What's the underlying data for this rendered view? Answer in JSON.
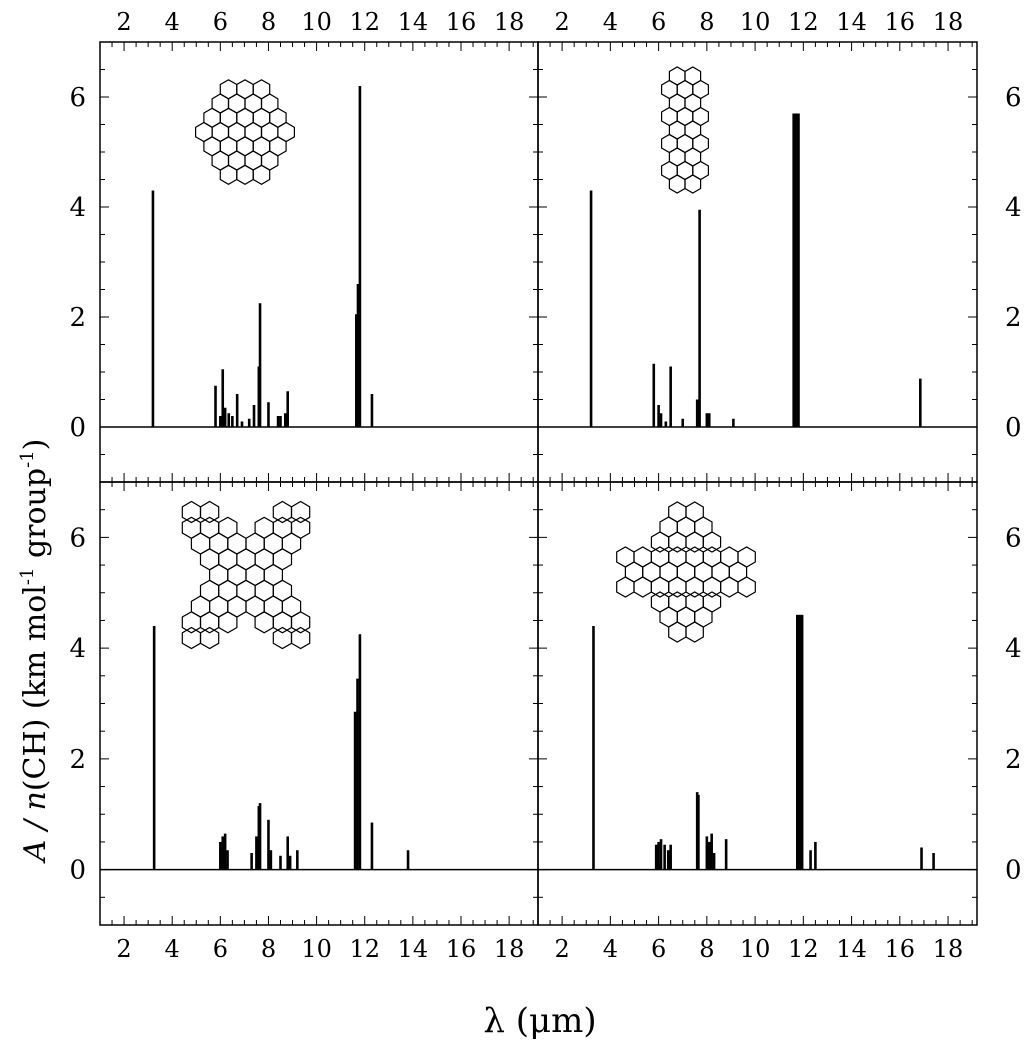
{
  "figure": {
    "xlabel": "λ (μm)",
    "ylabel_prefix": "A / ",
    "ylabel_n": "n",
    "ylabel_main": "(CH) (km mol",
    "ylabel_sup1": "-1",
    "ylabel_mid": " group",
    "ylabel_sup2": "-1",
    "ylabel_end": ")"
  },
  "chart_data": [
    {
      "type": "bar",
      "panel": "top-left",
      "xlim": [
        1,
        19.2
      ],
      "ylim": [
        -1,
        7
      ],
      "xticks": [
        2,
        4,
        6,
        8,
        10,
        12,
        14,
        16,
        18
      ],
      "yticks": [
        0,
        2,
        4,
        6
      ],
      "molecule_icon": "rhombic-pah-structure-icon",
      "x": [
        3.2,
        5.8,
        6.0,
        6.1,
        6.2,
        6.35,
        6.5,
        6.7,
        6.9,
        7.2,
        7.4,
        7.6,
        7.65,
        8.0,
        8.4,
        8.5,
        8.7,
        8.8,
        11.65,
        11.72,
        11.8,
        12.3
      ],
      "values": [
        4.3,
        0.75,
        0.2,
        1.05,
        0.35,
        0.25,
        0.2,
        0.6,
        0.1,
        0.15,
        0.4,
        1.1,
        2.25,
        0.45,
        0.2,
        0.2,
        0.25,
        0.65,
        2.05,
        2.6,
        6.2,
        0.6
      ]
    },
    {
      "type": "bar",
      "panel": "top-right",
      "xlim": [
        1,
        19.2
      ],
      "ylim": [
        -1,
        7
      ],
      "xticks": [
        2,
        4,
        6,
        8,
        10,
        12,
        14,
        16,
        18
      ],
      "yticks": [
        0,
        2,
        4,
        6
      ],
      "molecule_icon": "elongated-pah-structure-icon",
      "x": [
        3.2,
        5.8,
        6.0,
        6.1,
        6.3,
        6.5,
        7.0,
        7.6,
        7.7,
        8.0,
        8.1,
        9.1,
        11.6,
        11.65,
        11.7,
        11.75,
        11.8,
        16.85
      ],
      "values": [
        4.3,
        1.15,
        0.4,
        0.25,
        0.1,
        1.1,
        0.15,
        0.5,
        3.95,
        0.25,
        0.25,
        0.15,
        5.7,
        5.7,
        5.7,
        5.7,
        5.7,
        0.88
      ]
    },
    {
      "type": "bar",
      "panel": "bottom-left",
      "xlim": [
        1,
        19.2
      ],
      "ylim": [
        -1,
        7
      ],
      "xticks": [
        2,
        4,
        6,
        8,
        10,
        12,
        14,
        16,
        18
      ],
      "yticks": [
        0,
        2,
        4,
        6
      ],
      "molecule_icon": "x-shaped-pah-structure-icon",
      "x": [
        3.25,
        6.0,
        6.1,
        6.2,
        6.3,
        7.3,
        7.5,
        7.6,
        7.65,
        8.0,
        8.1,
        8.5,
        8.8,
        8.9,
        9.2,
        11.6,
        11.7,
        11.8,
        12.3,
        13.8
      ],
      "values": [
        4.4,
        0.5,
        0.6,
        0.65,
        0.35,
        0.3,
        0.6,
        1.15,
        1.2,
        0.9,
        0.35,
        0.25,
        0.6,
        0.25,
        0.35,
        2.85,
        3.45,
        4.25,
        0.85,
        0.35
      ]
    },
    {
      "type": "bar",
      "panel": "bottom-right",
      "xlim": [
        1,
        19.2
      ],
      "ylim": [
        -1,
        7
      ],
      "xticks": [
        2,
        4,
        6,
        8,
        10,
        12,
        14,
        16,
        18
      ],
      "yticks": [
        0,
        2,
        4,
        6
      ],
      "molecule_icon": "cross-shaped-pah-structure-icon",
      "x": [
        3.3,
        5.9,
        6.0,
        6.1,
        6.25,
        6.4,
        6.5,
        7.6,
        7.65,
        8.0,
        8.1,
        8.2,
        8.3,
        8.8,
        11.75,
        11.8,
        11.85,
        11.9,
        11.95,
        12.3,
        12.5,
        16.9,
        17.4
      ],
      "values": [
        4.4,
        0.45,
        0.5,
        0.55,
        0.45,
        0.35,
        0.45,
        1.4,
        1.35,
        0.6,
        0.5,
        0.65,
        0.3,
        0.55,
        4.6,
        4.6,
        4.6,
        4.6,
        4.6,
        0.35,
        0.5,
        0.4,
        0.3
      ]
    }
  ]
}
